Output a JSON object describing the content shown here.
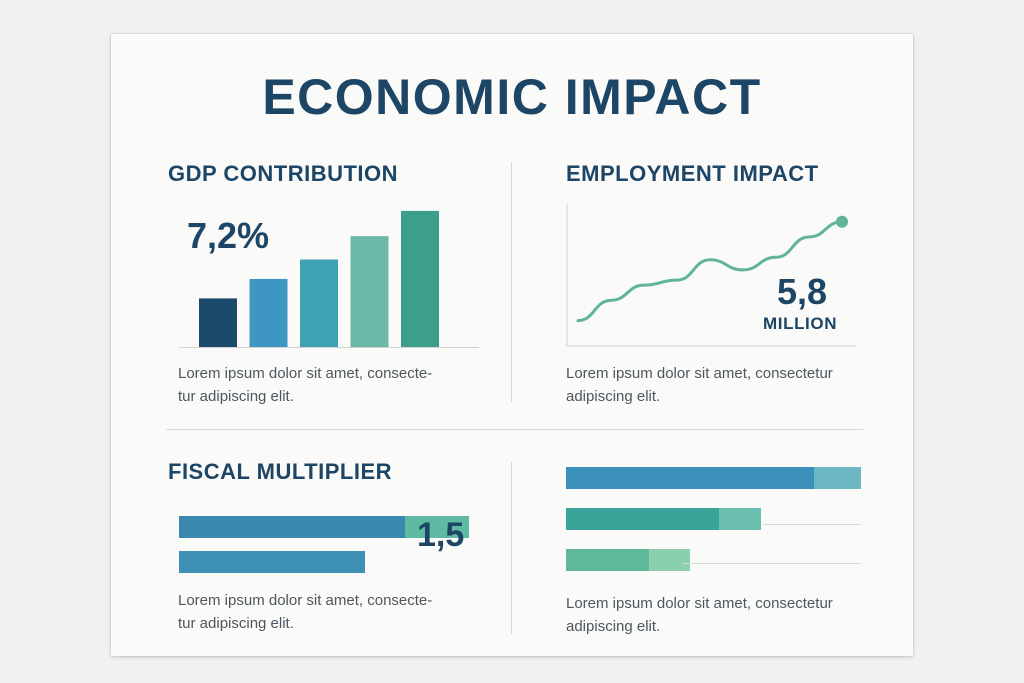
{
  "title": "ECONOMIC IMPACT",
  "gdp": {
    "title": "GDP CONTRIBUTION",
    "value": "7,2%",
    "text_line1": "Lorem ipsum dolor sit amet, consecte-",
    "text_line2": "tur adipiscing elit."
  },
  "employment": {
    "title": "EMPLOYMENT IMPACT",
    "value": "5,8",
    "unit": "MILLION",
    "text_line1": "Lorem ipsum dolor sit amet, consectetur",
    "text_line2": "adipiscing elit."
  },
  "fiscal": {
    "title": "FISCAL MULTIPLIER",
    "value": "1,5",
    "text_line1": "Lorem ipsum dolor sit amet, consecte-",
    "text_line2": "tur adipiscing elit."
  },
  "bars_panel": {
    "text_line1": "Lorem ipsum dolor sit amet, consectetur",
    "text_line2": "adipiscing elit."
  },
  "chart_data": [
    {
      "type": "bar",
      "section": "gdp",
      "values": [
        2.5,
        3.5,
        4.5,
        5.7,
        7.0
      ],
      "ylim": [
        0,
        7.2
      ],
      "colors": [
        "#1b4a6b",
        "#3d97c2",
        "#3fa2b2",
        "#6cb8a6",
        "#3d9e8c"
      ]
    },
    {
      "type": "line",
      "section": "employment",
      "x": [
        0,
        1,
        2,
        3,
        4,
        5,
        6,
        7,
        8
      ],
      "values": [
        1.0,
        1.8,
        2.4,
        2.6,
        3.4,
        3.0,
        3.5,
        4.3,
        4.9
      ],
      "ylim": [
        0,
        5.6
      ],
      "color": "#5fb49a",
      "marker_last": true
    },
    {
      "type": "bar",
      "orientation": "horizontal",
      "section": "fiscal",
      "series": [
        {
          "values": [
            0.78,
            0.22
          ],
          "colors": [
            "#3a88b0",
            "#5fbaa4"
          ]
        },
        {
          "values": [
            0.64,
            0.0
          ],
          "colors": [
            "#3d8fb3",
            "#5fbaa4"
          ]
        }
      ],
      "xlim": [
        0,
        1.0
      ]
    },
    {
      "type": "bar",
      "orientation": "horizontal",
      "section": "bars_panel",
      "series": [
        {
          "values": [
            0.84,
            0.16
          ],
          "colors": [
            "#3b90bc",
            "#6bb8c2"
          ]
        },
        {
          "values": [
            0.52,
            0.14
          ],
          "colors": [
            "#3aa39a",
            "#6cc0b2"
          ]
        },
        {
          "values": [
            0.28,
            0.14
          ],
          "colors": [
            "#5fb89a",
            "#8acfb0"
          ]
        }
      ],
      "xlim": [
        0,
        1.0
      ]
    }
  ]
}
